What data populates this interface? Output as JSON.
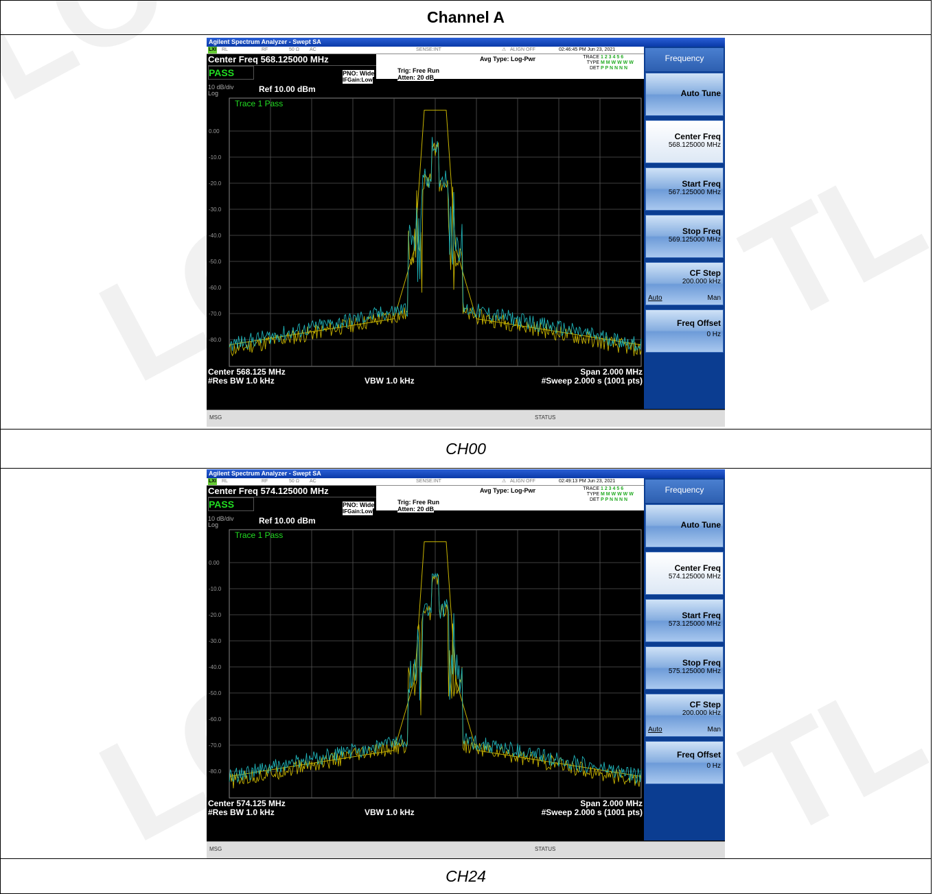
{
  "watermark": "LCTL",
  "report": {
    "header": "Channel A"
  },
  "analyzer_common": {
    "window_title": "Agilent Spectrum Analyzer - Swept SA",
    "status_rl": "RL",
    "status_rf": "RF",
    "status_ohm": "50 Ω",
    "status_ac": "AC",
    "sense": "SENSE:INT",
    "align": "ALIGN OFF",
    "pass": "PASS",
    "pno": "PNO: Wide",
    "ifgain": "IFGain:Low",
    "trig": "Trig: Free Run",
    "atten": "Atten: 20 dB",
    "avg_type": "Avg Type: Log-Pwr",
    "trace_label": "TRACE",
    "type_label": "TYPE",
    "det_label": "DET",
    "trace_nums": "1 2 3 4 5 6",
    "type_vals": "M M W W W W",
    "det_vals": "P P N N N N",
    "scale": "10 dB/div",
    "log": "Log",
    "ref": "Ref 10.00 dBm",
    "trace_pass": "Trace 1 Pass",
    "y_ticks": [
      "0.00",
      "-10.0",
      "-20.0",
      "-30.0",
      "-40.0",
      "-50.0",
      "-60.0",
      "-70.0",
      "-80.0"
    ],
    "res_bw": "#Res BW 1.0 kHz",
    "vbw": "VBW 1.0 kHz",
    "span": "Span 2.000 MHz",
    "sweep": "#Sweep  2.000 s (1001 pts)",
    "msg": "MSG",
    "status": "STATUS",
    "menu_title": "Frequency",
    "auto_tune": "Auto Tune",
    "center_freq_label": "Center Freq",
    "start_freq_label": "Start Freq",
    "stop_freq_label": "Stop Freq",
    "cf_step_label": "CF Step",
    "cf_step_value": "200.000 kHz",
    "auto": "Auto",
    "man": "Man",
    "freq_offset_label": "Freq Offset",
    "freq_offset_value": "0 Hz",
    "colors": {
      "trace1": "#c8b400",
      "trace2": "#1fb3b8",
      "mask": "#c8b400"
    }
  },
  "screens": [
    {
      "caption": "CH00",
      "timestamp": "02:46:45 PM Jun 23, 2021",
      "center_freq_top": "Center Freq 568.125000 MHz",
      "center_bottom": "Center 568.125 MHz",
      "center_freq_value": "568.125000 MHz",
      "start_freq_value": "567.125000 MHz",
      "stop_freq_value": "569.125000 MHz"
    },
    {
      "caption": "CH24",
      "timestamp": "02:49:13 PM Jun 23, 2021",
      "center_freq_top": "Center Freq 574.125000 MHz",
      "center_bottom": "Center 574.125 MHz",
      "center_freq_value": "574.125000 MHz",
      "start_freq_value": "573.125000 MHz",
      "stop_freq_value": "575.125000 MHz"
    }
  ]
}
